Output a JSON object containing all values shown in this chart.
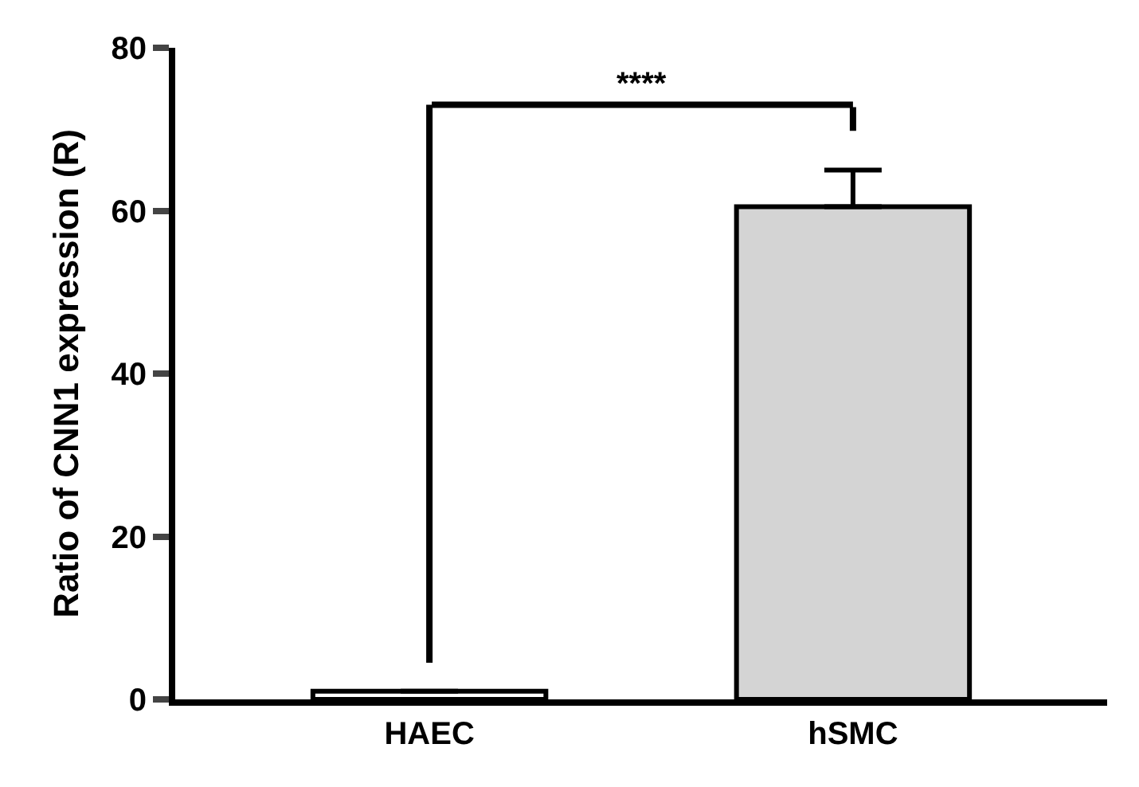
{
  "chart_data": {
    "type": "bar",
    "ylabel": "Ratio of CNN1 expression (R)",
    "categories": [
      "HAEC",
      "hSMC"
    ],
    "values": [
      1,
      60.5
    ],
    "colors": [
      "#ffffff",
      "#d4d4d4"
    ],
    "errors": [
      null,
      [
        60.5,
        65
      ]
    ],
    "ylim": [
      0,
      80
    ],
    "yticks": [
      0,
      20,
      40,
      60,
      80
    ],
    "annotations": [
      "****"
    ]
  }
}
